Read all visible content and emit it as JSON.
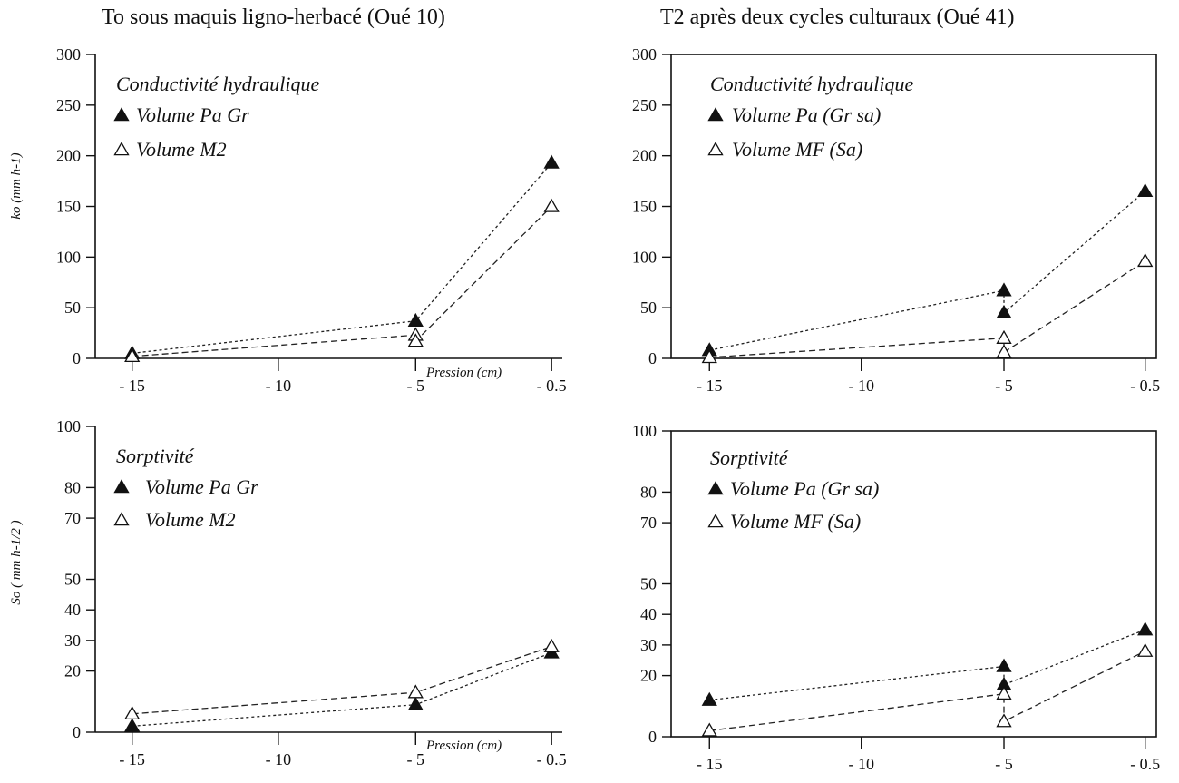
{
  "figure": {
    "titles": [
      "To sous maquis ligno-herbacé (Oué 10)",
      "T2 après deux cycles culturaux (Oué 41)"
    ]
  },
  "chart_data": [
    {
      "type": "line",
      "panel": "top-left",
      "box": "axes-only",
      "ylabel": "ko (mm h-1)",
      "xlabel": "Pression (cm)",
      "ylim": [
        0,
        300
      ],
      "yticks": [
        0,
        50,
        100,
        150,
        200,
        250,
        300
      ],
      "xticks": [
        "- 15",
        "- 10",
        "- 5",
        "- 0.5"
      ],
      "annotations": [
        "Conductivité hydraulique"
      ],
      "series": [
        {
          "name": "Volume Pa Gr",
          "marker": "filled-triangle",
          "line": "dotted",
          "points": [
            {
              "x": "- 15",
              "y": 5
            },
            {
              "x": "- 5",
              "y": 37
            },
            {
              "x": "- 0.5",
              "y": 193
            }
          ]
        },
        {
          "name": "Volume M2",
          "marker": "open-triangle",
          "line": "dashed",
          "points": [
            {
              "x": "- 15",
              "y": 2
            },
            {
              "x": "- 5",
              "y": 23
            },
            {
              "x": "- 5",
              "y": 17
            },
            {
              "x": "- 0.5",
              "y": 150
            }
          ]
        }
      ]
    },
    {
      "type": "line",
      "panel": "top-right",
      "box": "full-box",
      "ylabel": "",
      "xlabel": "",
      "ylim": [
        0,
        300
      ],
      "yticks": [
        0,
        50,
        100,
        150,
        200,
        250,
        300
      ],
      "xticks": [
        "- 15",
        "- 10",
        "- 5",
        "- 0.5"
      ],
      "annotations": [
        "Conductivité hydraulique"
      ],
      "series": [
        {
          "name": "Volume Pa (Gr sa)",
          "marker": "filled-triangle",
          "line": "dotted",
          "points": [
            {
              "x": "- 15",
              "y": 8
            },
            {
              "x": "- 5",
              "y": 67
            },
            {
              "x": "- 5",
              "y": 45
            },
            {
              "x": "- 0.5",
              "y": 165
            }
          ]
        },
        {
          "name": "Volume MF (Sa)",
          "marker": "open-triangle",
          "line": "dashed",
          "points": [
            {
              "x": "- 15",
              "y": 1
            },
            {
              "x": "- 5",
              "y": 20
            },
            {
              "x": "- 5",
              "y": 6
            },
            {
              "x": "- 0.5",
              "y": 96
            }
          ]
        }
      ]
    },
    {
      "type": "line",
      "panel": "bottom-left",
      "box": "axes-only",
      "ylabel": "So ( mm h-1/2 )",
      "xlabel": "Pression (cm)",
      "ylim": [
        0,
        100
      ],
      "yticks": [
        0,
        20,
        30,
        40,
        50,
        70,
        80,
        100
      ],
      "ytick_labels": [
        "0",
        "20",
        "30",
        "40",
        "50",
        "70",
        "80",
        "100"
      ],
      "xticks": [
        "- 15",
        "- 10",
        "- 5",
        "- 0.5"
      ],
      "annotations": [
        "Sorptivité"
      ],
      "series": [
        {
          "name": "Volume Pa Gr",
          "marker": "filled-triangle",
          "line": "dotted",
          "points": [
            {
              "x": "- 15",
              "y": 2
            },
            {
              "x": "- 5",
              "y": 9
            },
            {
              "x": "- 0.5",
              "y": 26
            }
          ]
        },
        {
          "name": "Volume M2",
          "marker": "open-triangle",
          "line": "dashed",
          "points": [
            {
              "x": "- 15",
              "y": 6
            },
            {
              "x": "- 5",
              "y": 13
            },
            {
              "x": "- 0.5",
              "y": 28
            }
          ]
        }
      ]
    },
    {
      "type": "line",
      "panel": "bottom-right",
      "box": "full-box",
      "ylabel": "",
      "xlabel": "",
      "ylim": [
        0,
        100
      ],
      "yticks": [
        0,
        20,
        30,
        40,
        50,
        70,
        80,
        100
      ],
      "ytick_labels": [
        "0",
        "20",
        "30",
        "40",
        "50",
        "70",
        "80",
        "100"
      ],
      "xticks": [
        "- 15",
        "- 10",
        "- 5",
        "- 0.5"
      ],
      "annotations": [
        "Sorptivité"
      ],
      "series": [
        {
          "name": "Volume Pa (Gr sa)",
          "marker": "filled-triangle",
          "line": "dotted",
          "points": [
            {
              "x": "- 15",
              "y": 12
            },
            {
              "x": "- 5",
              "y": 23
            },
            {
              "x": "- 5",
              "y": 17
            },
            {
              "x": "- 0.5",
              "y": 35
            }
          ]
        },
        {
          "name": "Volume MF (Sa)",
          "marker": "open-triangle",
          "line": "dashed",
          "points": [
            {
              "x": "- 15",
              "y": 2
            },
            {
              "x": "- 5",
              "y": 14
            },
            {
              "x": "- 5",
              "y": 5
            },
            {
              "x": "- 0.5",
              "y": 28
            }
          ]
        }
      ]
    }
  ]
}
